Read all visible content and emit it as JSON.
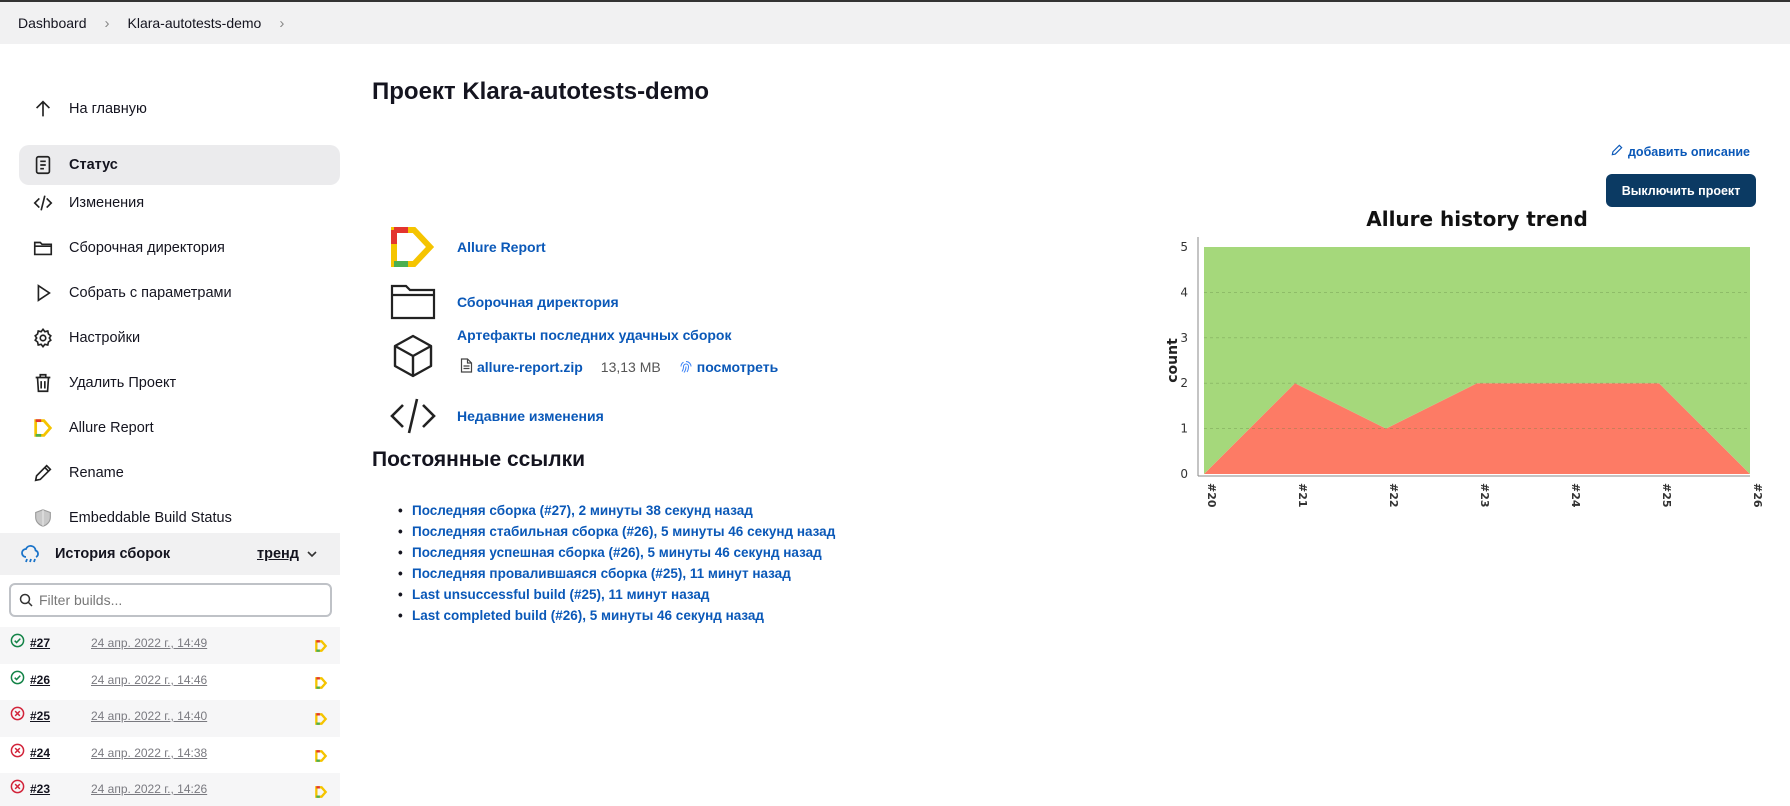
{
  "breadcrumb": [
    "Dashboard",
    "Klara-autotests-demo"
  ],
  "sidebar": {
    "tasks": [
      {
        "label": "На главную",
        "icon": "arrow-up-icon",
        "active": false
      },
      {
        "label": "Статус",
        "icon": "document-icon",
        "active": true
      },
      {
        "label": "Изменения",
        "icon": "code-icon",
        "active": false
      },
      {
        "label": "Сборочная директория",
        "icon": "folder-icon",
        "active": false
      },
      {
        "label": "Собрать с параметрами",
        "icon": "play-icon",
        "active": false
      },
      {
        "label": "Настройки",
        "icon": "gear-icon",
        "active": false
      },
      {
        "label": "Удалить Проект",
        "icon": "trash-icon",
        "active": false
      },
      {
        "label": "Allure Report",
        "icon": "allure-logo-icon",
        "active": false
      },
      {
        "label": "Rename",
        "icon": "pencil-icon",
        "active": false
      },
      {
        "label": "Embeddable Build Status",
        "icon": "shield-icon",
        "active": false
      }
    ]
  },
  "history": {
    "title": "История сборок",
    "trend_label": "тренд",
    "filter_placeholder": "Filter builds...",
    "builds": [
      {
        "number": "#27",
        "date": "24 апр. 2022 г., 14:49",
        "status": "success"
      },
      {
        "number": "#26",
        "date": "24 апр. 2022 г., 14:46",
        "status": "success"
      },
      {
        "number": "#25",
        "date": "24 апр. 2022 г., 14:40",
        "status": "failed"
      },
      {
        "number": "#24",
        "date": "24 апр. 2022 г., 14:38",
        "status": "failed"
      },
      {
        "number": "#23",
        "date": "24 апр. 2022 г., 14:26",
        "status": "failed"
      }
    ]
  },
  "main": {
    "title": "Проект Klara-autotests-demo",
    "add_description": "добавить описание",
    "disable_button": "Выключить проект",
    "links": {
      "allure": "Allure Report",
      "workspace": "Сборочная директория",
      "artifacts": "Артефакты последних удачных сборок",
      "changes": "Недавние изменения"
    },
    "artifact": {
      "file": "allure-report.zip",
      "size": "13,13 MB",
      "view": "посмотреть"
    },
    "permalinks_title": "Постоянные ссылки",
    "permalinks": [
      "Последняя сборка (#27), 2 минуты 38 секунд назад",
      "Последняя стабильная сборка (#26), 5 минуты 46 секунд назад",
      "Последняя успешная сборка (#26), 5 минуты 46 секунд назад",
      "Последняя провалившаяся сборка (#25), 11 минут назад",
      "Last unsuccessful build (#25), 11 минут назад",
      "Last completed build (#26), 5 минуты 46 секунд назад"
    ]
  },
  "colors": {
    "passed": "#a5d87b",
    "failed": "#fd7b65",
    "link": "#0a58b8",
    "button": "#0b3a63"
  },
  "chart_data": {
    "type": "area",
    "title": "Allure history trend",
    "ylabel": "count",
    "xlabel": "",
    "categories": [
      "#20",
      "#21",
      "#22",
      "#23",
      "#24",
      "#25",
      "#26"
    ],
    "series": [
      {
        "name": "failed",
        "values": [
          0,
          2,
          1,
          2,
          2,
          2,
          0
        ]
      },
      {
        "name": "passed",
        "values": [
          5,
          3,
          4,
          3,
          3,
          3,
          5
        ]
      }
    ],
    "stacked": true,
    "ylim": [
      0,
      5
    ],
    "yticks": [
      "0",
      "1",
      "2",
      "3",
      "4",
      "5"
    ],
    "grid": true
  }
}
